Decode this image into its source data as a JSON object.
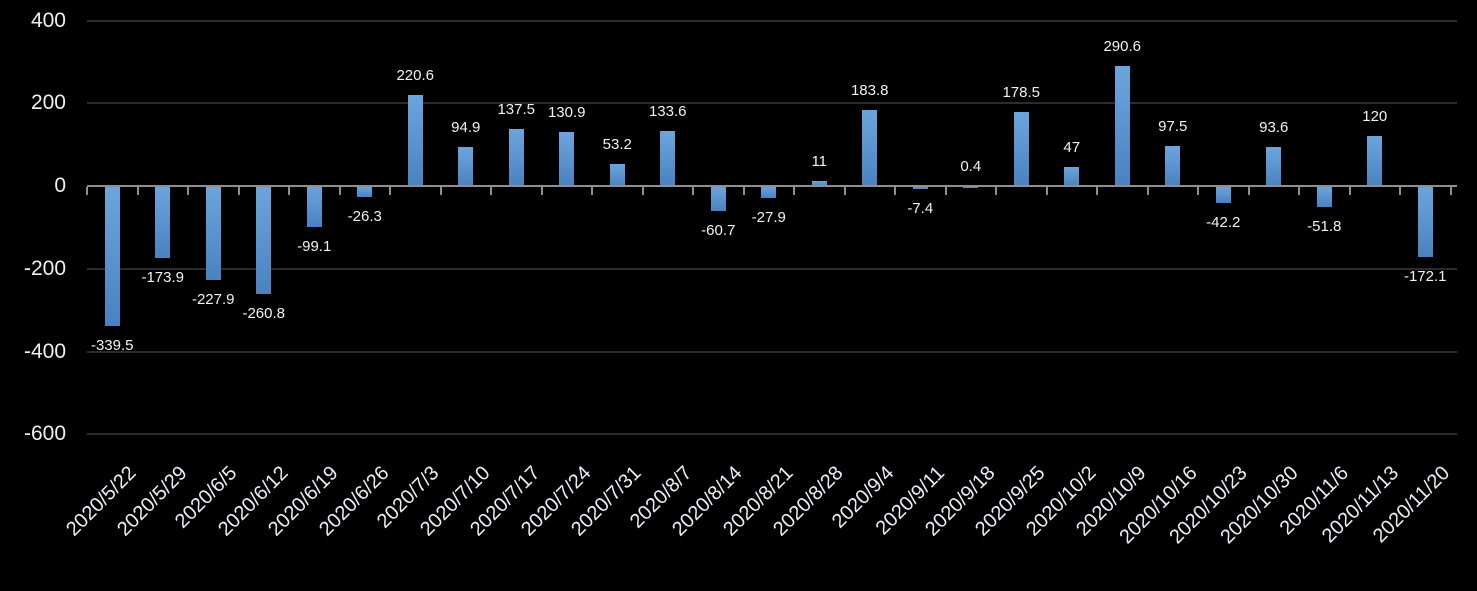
{
  "chart_data": {
    "type": "bar",
    "title": "",
    "xlabel": "",
    "ylabel": "",
    "categories": [
      "2020/5/22",
      "2020/5/29",
      "2020/6/5",
      "2020/6/12",
      "2020/6/19",
      "2020/6/26",
      "2020/7/3",
      "2020/7/10",
      "2020/7/17",
      "2020/7/24",
      "2020/7/31",
      "2020/8/7",
      "2020/8/14",
      "2020/8/21",
      "2020/8/28",
      "2020/9/4",
      "2020/9/11",
      "2020/9/18",
      "2020/9/25",
      "2020/10/2",
      "2020/10/9",
      "2020/10/16",
      "2020/10/23",
      "2020/10/30",
      "2020/11/6",
      "2020/11/13",
      "2020/11/20"
    ],
    "values": [
      -339.5,
      -173.9,
      -227.9,
      -260.8,
      -99.1,
      -26.3,
      220.6,
      94.9,
      137.5,
      130.9,
      53.2,
      133.6,
      -60.7,
      -27.9,
      11,
      183.8,
      -7.4,
      0.4,
      178.5,
      47,
      290.6,
      97.5,
      -42.2,
      93.6,
      -51.8,
      120,
      -172.1
    ],
    "data_labels": [
      "-339.5",
      "-173.9",
      "-227.9",
      "-260.8",
      "-99.1",
      "-26.3",
      "220.6",
      "94.9",
      "137.5",
      "130.9",
      "53.2",
      "133.6",
      "-60.7",
      "-27.9",
      "11",
      "183.8",
      "-7.4",
      "0.4",
      "178.5",
      "47",
      "290.6",
      "97.5",
      "-42.2",
      "93.6",
      "-51.8",
      "120",
      "-172.1"
    ],
    "ylim": [
      -600,
      400
    ],
    "yticks": [
      400,
      200,
      0,
      -200,
      -400,
      -600
    ],
    "ytick_labels": [
      "400",
      "200",
      "0",
      "-200",
      "-400",
      "-600"
    ],
    "grid": true,
    "legend": false,
    "colors": {
      "background": "#000000",
      "bar_gradient_top": "#6ca5dd",
      "bar_gradient_bottom": "#4a82c1",
      "gridline": "#2b2b2b",
      "axis_line": "#8f8f8f",
      "value_label_text": "#f2f2f2",
      "y_axis_text": "#f0f0f0",
      "x_axis_text": "#e9eef5"
    }
  }
}
